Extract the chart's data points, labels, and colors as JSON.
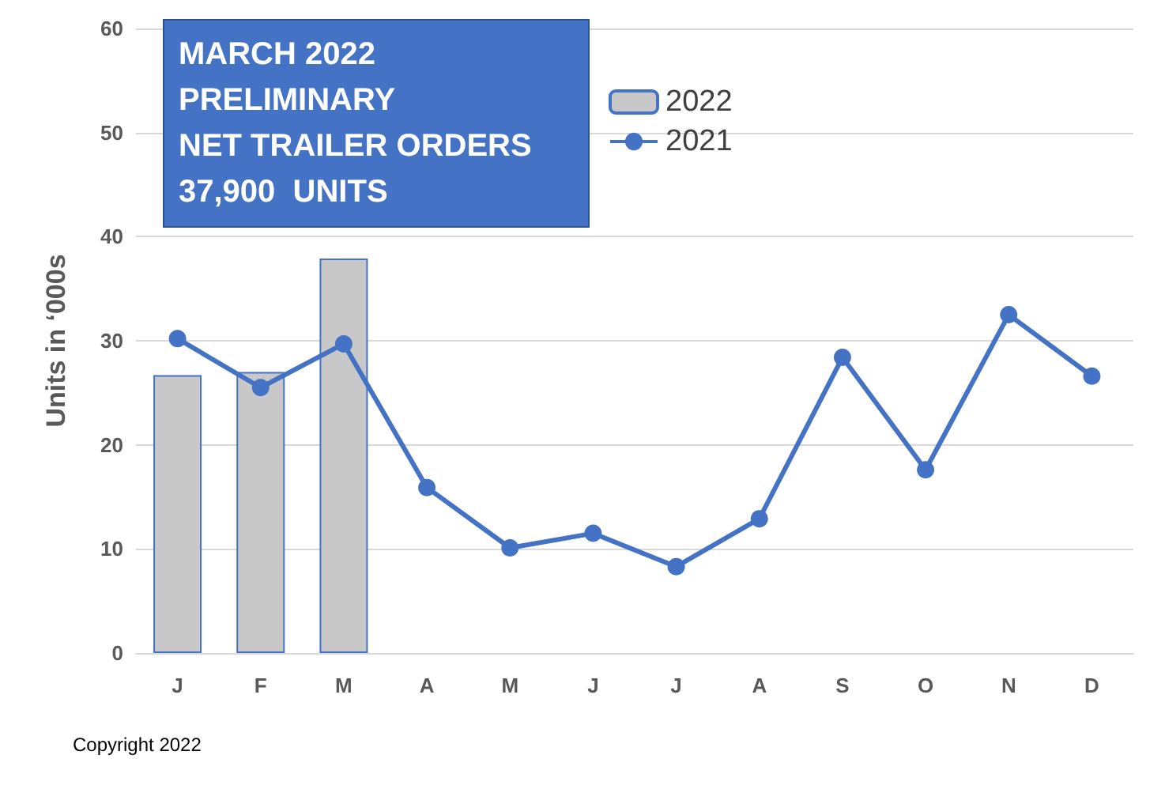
{
  "chart_data": {
    "type": "bar",
    "title": "MARCH 2022\nPRELIMINARY\nNET TRAILER ORDERS\n37,900  UNITS",
    "ylabel": "Units in ‘000s",
    "categories": [
      "J",
      "F",
      "M",
      "A",
      "M",
      "J",
      "J",
      "A",
      "S",
      "O",
      "N",
      "D"
    ],
    "series": [
      {
        "name": "2022",
        "color": "#c8c8c8",
        "values": [
          26.7,
          27,
          37.9,
          null,
          null,
          null,
          null,
          null,
          null,
          null,
          null,
          null
        ]
      },
      {
        "name": "2021",
        "type": "line",
        "color": "#4472c4",
        "values": [
          30.2,
          25.5,
          29.7,
          15.9,
          10.1,
          11.5,
          8.3,
          12.9,
          28.4,
          17.6,
          32.5,
          26.6
        ]
      }
    ],
    "ylim": [
      0,
      60
    ],
    "yticks": [
      0,
      10,
      20,
      30,
      40,
      50,
      60
    ],
    "grid": "y",
    "legend": "top",
    "marker": "circle",
    "annotations": [
      "Copyright 2022"
    ]
  }
}
